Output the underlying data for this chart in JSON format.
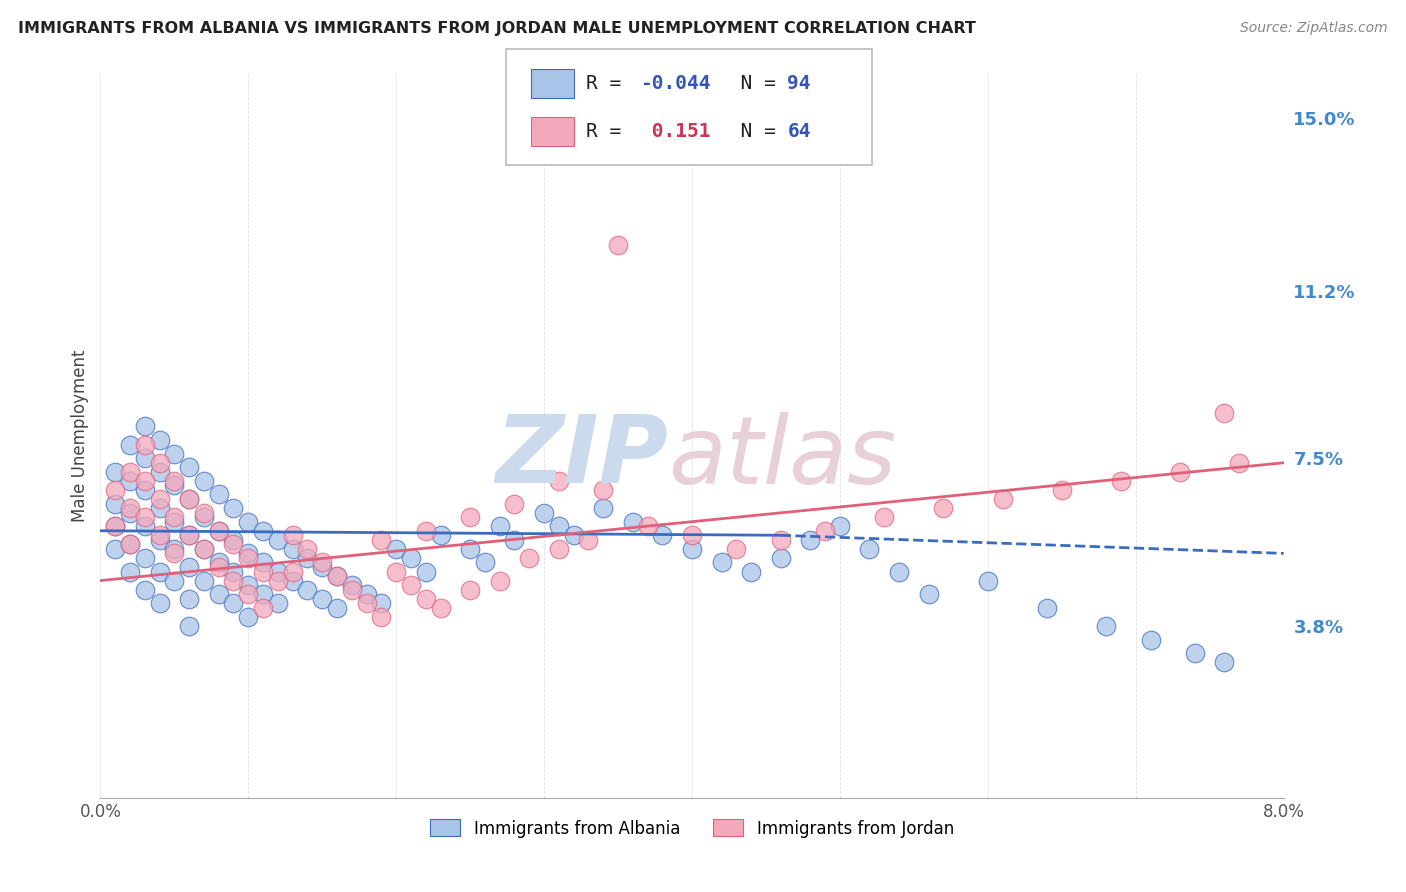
{
  "title": "IMMIGRANTS FROM ALBANIA VS IMMIGRANTS FROM JORDAN MALE UNEMPLOYMENT CORRELATION CHART",
  "source": "Source: ZipAtlas.com",
  "xlabel_albania": "Immigrants from Albania",
  "xlabel_jordan": "Immigrants from Jordan",
  "ylabel": "Male Unemployment",
  "r_albania": -0.044,
  "n_albania": 94,
  "r_jordan": 0.151,
  "n_jordan": 64,
  "color_albania": "#aac4e8",
  "color_jordan": "#f4a8bc",
  "color_albania_line": "#3b6bbf",
  "color_jordan_line": "#e0607a",
  "xlim": [
    0.0,
    0.08
  ],
  "ylim": [
    0.0,
    0.16
  ],
  "yticks": [
    0.038,
    0.075,
    0.112,
    0.15
  ],
  "ytick_labels": [
    "3.8%",
    "7.5%",
    "11.2%",
    "15.0%"
  ],
  "background_color": "#ffffff",
  "grid_color": "#cccccc",
  "title_color": "#222222",
  "right_tick_color": "#4488CC",
  "legend_r_color_albania": "#3355bb",
  "legend_r_color_jordan": "#cc3355",
  "legend_n_color": "#3355bb",
  "watermark_zip_color": "#ccdaee",
  "watermark_atlas_color": "#e8d0d8",
  "albania_x": [
    0.001,
    0.001,
    0.001,
    0.001,
    0.002,
    0.002,
    0.002,
    0.002,
    0.002,
    0.003,
    0.003,
    0.003,
    0.003,
    0.003,
    0.003,
    0.004,
    0.004,
    0.004,
    0.004,
    0.004,
    0.004,
    0.005,
    0.005,
    0.005,
    0.005,
    0.005,
    0.006,
    0.006,
    0.006,
    0.006,
    0.006,
    0.006,
    0.007,
    0.007,
    0.007,
    0.007,
    0.008,
    0.008,
    0.008,
    0.008,
    0.009,
    0.009,
    0.009,
    0.009,
    0.01,
    0.01,
    0.01,
    0.01,
    0.011,
    0.011,
    0.011,
    0.012,
    0.012,
    0.012,
    0.013,
    0.013,
    0.014,
    0.014,
    0.015,
    0.015,
    0.016,
    0.016,
    0.017,
    0.018,
    0.019,
    0.02,
    0.021,
    0.022,
    0.023,
    0.025,
    0.026,
    0.027,
    0.028,
    0.03,
    0.031,
    0.032,
    0.034,
    0.036,
    0.038,
    0.04,
    0.042,
    0.044,
    0.046,
    0.048,
    0.05,
    0.052,
    0.054,
    0.056,
    0.06,
    0.064,
    0.068,
    0.071,
    0.074,
    0.076
  ],
  "albania_y": [
    0.072,
    0.065,
    0.06,
    0.055,
    0.078,
    0.07,
    0.063,
    0.056,
    0.05,
    0.082,
    0.075,
    0.068,
    0.06,
    0.053,
    0.046,
    0.079,
    0.072,
    0.064,
    0.057,
    0.05,
    0.043,
    0.076,
    0.069,
    0.061,
    0.055,
    0.048,
    0.073,
    0.066,
    0.058,
    0.051,
    0.044,
    0.038,
    0.07,
    0.062,
    0.055,
    0.048,
    0.067,
    0.059,
    0.052,
    0.045,
    0.064,
    0.057,
    0.05,
    0.043,
    0.061,
    0.054,
    0.047,
    0.04,
    0.059,
    0.052,
    0.045,
    0.057,
    0.05,
    0.043,
    0.055,
    0.048,
    0.053,
    0.046,
    0.051,
    0.044,
    0.049,
    0.042,
    0.047,
    0.045,
    0.043,
    0.055,
    0.053,
    0.05,
    0.058,
    0.055,
    0.052,
    0.06,
    0.057,
    0.063,
    0.06,
    0.058,
    0.064,
    0.061,
    0.058,
    0.055,
    0.052,
    0.05,
    0.053,
    0.057,
    0.06,
    0.055,
    0.05,
    0.045,
    0.048,
    0.042,
    0.038,
    0.035,
    0.032,
    0.03
  ],
  "jordan_x": [
    0.001,
    0.001,
    0.002,
    0.002,
    0.002,
    0.003,
    0.003,
    0.003,
    0.004,
    0.004,
    0.004,
    0.005,
    0.005,
    0.005,
    0.006,
    0.006,
    0.007,
    0.007,
    0.008,
    0.008,
    0.009,
    0.009,
    0.01,
    0.01,
    0.011,
    0.011,
    0.012,
    0.013,
    0.013,
    0.014,
    0.015,
    0.016,
    0.017,
    0.018,
    0.019,
    0.02,
    0.021,
    0.022,
    0.023,
    0.025,
    0.027,
    0.029,
    0.031,
    0.033,
    0.035,
    0.037,
    0.04,
    0.043,
    0.046,
    0.049,
    0.053,
    0.057,
    0.061,
    0.065,
    0.069,
    0.073,
    0.077,
    0.031,
    0.034,
    0.028,
    0.025,
    0.022,
    0.019,
    0.076
  ],
  "jordan_y": [
    0.068,
    0.06,
    0.072,
    0.064,
    0.056,
    0.078,
    0.07,
    0.062,
    0.074,
    0.066,
    0.058,
    0.07,
    0.062,
    0.054,
    0.066,
    0.058,
    0.063,
    0.055,
    0.059,
    0.051,
    0.056,
    0.048,
    0.053,
    0.045,
    0.05,
    0.042,
    0.048,
    0.058,
    0.05,
    0.055,
    0.052,
    0.049,
    0.046,
    0.043,
    0.04,
    0.05,
    0.047,
    0.044,
    0.042,
    0.046,
    0.048,
    0.053,
    0.055,
    0.057,
    0.122,
    0.06,
    0.058,
    0.055,
    0.057,
    0.059,
    0.062,
    0.064,
    0.066,
    0.068,
    0.07,
    0.072,
    0.074,
    0.07,
    0.068,
    0.065,
    0.062,
    0.059,
    0.057,
    0.085
  ],
  "alb_trend_x": [
    0.0,
    0.046,
    0.08
  ],
  "alb_trend_y": [
    0.059,
    0.058,
    0.054
  ],
  "jor_trend_x": [
    0.0,
    0.08
  ],
  "jor_trend_y": [
    0.048,
    0.074
  ]
}
